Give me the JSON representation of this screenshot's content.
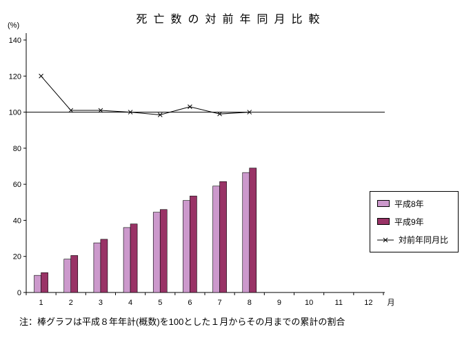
{
  "title": "死亡数の対前年同月比較",
  "y_axis_unit": "(%)",
  "x_axis_unit": "月",
  "note": "注：棒グラフは平成８年年計(概数)を100とした１月からその月までの累計の割合",
  "legend": {
    "heisei8": "平成8年",
    "heisei9": "平成9年",
    "ratio": "対前年同月比"
  },
  "colors": {
    "heisei8_bar": "#cc99cc",
    "heisei9_bar": "#993366",
    "ratio_line": "#000000",
    "axis": "#000000",
    "background": "#ffffff"
  },
  "chart_data": {
    "type": "bar+line",
    "title": "死亡数の対前年同月比較",
    "ylabel": "(%)",
    "xlabel": "月",
    "categories": [
      1,
      2,
      3,
      4,
      5,
      6,
      7,
      8,
      9,
      10,
      11,
      12
    ],
    "series": [
      {
        "name": "平成8年",
        "type": "bar",
        "color": "#cc99cc",
        "values": [
          9.5,
          18.5,
          27.5,
          36,
          44.5,
          51,
          59,
          66.5,
          null,
          null,
          null,
          null
        ]
      },
      {
        "name": "平成9年",
        "type": "bar",
        "color": "#993366",
        "values": [
          11,
          20.5,
          29.5,
          38,
          46,
          53.5,
          61.5,
          69,
          null,
          null,
          null,
          null
        ]
      },
      {
        "name": "対前年同月比",
        "type": "line",
        "color": "#000000",
        "values": [
          120,
          101,
          101,
          100,
          98.5,
          103,
          99,
          100,
          null,
          null,
          null,
          null
        ]
      }
    ],
    "ylim": [
      0,
      140
    ],
    "yticks": [
      0,
      20,
      40,
      60,
      80,
      100,
      120,
      140
    ],
    "reference_line": 100,
    "grid": false,
    "legend_position": "right"
  }
}
